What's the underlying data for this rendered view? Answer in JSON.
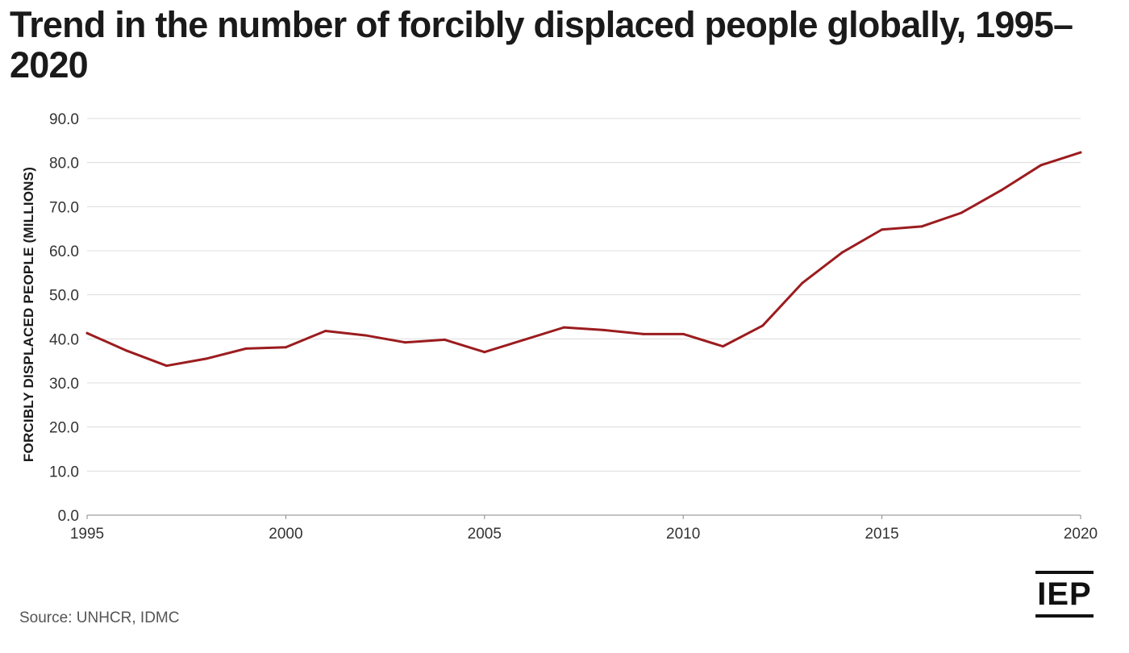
{
  "title": "Trend in the number of forcibly displaced people globally, 1995–2020",
  "source": "Source: UNHCR, IDMC",
  "logo_text": "IEP",
  "colors": {
    "line": "#9b1c1f",
    "grid": "#dcdcdc",
    "axis": "#888888",
    "text": "#1a1a1a"
  },
  "chart_data": {
    "type": "line",
    "title": "Trend in the number of forcibly displaced people globally, 1995–2020",
    "xlabel": "",
    "ylabel": "FORCIBLY DISPLACED PEOPLE (MILLIONS)",
    "ylim": [
      0,
      90
    ],
    "xlim": [
      1995,
      2020
    ],
    "y_ticks": [
      "0.0",
      "10.0",
      "20.0",
      "30.0",
      "40.0",
      "50.0",
      "60.0",
      "70.0",
      "80.0",
      "90.0"
    ],
    "x_ticks": [
      "1995",
      "2000",
      "2005",
      "2010",
      "2015",
      "2020"
    ],
    "grid": true,
    "x": [
      1995,
      1996,
      1997,
      1998,
      1999,
      2000,
      2001,
      2002,
      2003,
      2004,
      2005,
      2006,
      2007,
      2008,
      2009,
      2010,
      2011,
      2012,
      2013,
      2014,
      2015,
      2016,
      2017,
      2018,
      2019,
      2020
    ],
    "series": [
      {
        "values": [
          41.3,
          37.3,
          33.9,
          35.5,
          37.8,
          38.1,
          41.8,
          40.8,
          39.2,
          39.8,
          37.0,
          39.8,
          42.6,
          42.0,
          41.1,
          41.1,
          38.3,
          43.0,
          52.7,
          59.6,
          64.8,
          65.5,
          68.6,
          73.7,
          79.4,
          82.3
        ]
      }
    ]
  }
}
